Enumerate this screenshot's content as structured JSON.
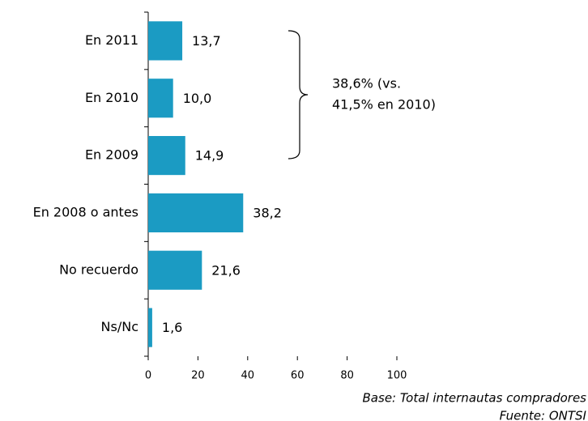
{
  "chart_data": {
    "type": "bar",
    "orientation": "horizontal",
    "categories": [
      "En 2011",
      "En 2010",
      "En 2009",
      "En 2008 o antes",
      "No recuerdo",
      "Ns/Nc"
    ],
    "values": [
      13.7,
      10.0,
      14.9,
      38.2,
      21.6,
      1.6
    ],
    "value_labels": [
      "13,7",
      "10,0",
      "14,9",
      "38,2",
      "21,6",
      "1,6"
    ],
    "color": "#1b9bc3",
    "xlim": [
      0,
      100
    ],
    "xticks": [
      0,
      20,
      40,
      60,
      80,
      100
    ],
    "annotation": [
      "38,6% (vs.",
      "41,5% en 2010)"
    ],
    "footnotes": [
      "Base: Total internautas compradores",
      "Fuente: ONTSI"
    ]
  }
}
